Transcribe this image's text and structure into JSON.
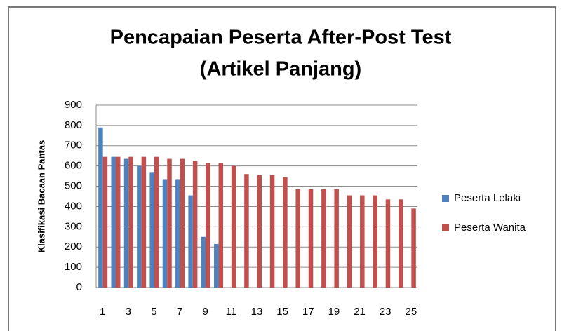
{
  "chart_data": {
    "type": "bar",
    "title": [
      "Pencapaian Peserta After-Post Test",
      "(Artikel Panjang)"
    ],
    "y_label": "Klasifikasi Bacaan Pantas",
    "categories": [
      "1",
      null,
      "3",
      null,
      "5",
      null,
      "7",
      null,
      "9",
      null,
      "11",
      null,
      "13",
      null,
      "15",
      null,
      "17",
      null,
      "19",
      null,
      "21",
      null,
      "23",
      null,
      "25"
    ],
    "series": [
      {
        "name": "Peserta Lelaki",
        "color": "#4f81bd",
        "values": [
          790,
          645,
          635,
          600,
          570,
          535,
          535,
          455,
          250,
          215,
          null,
          null,
          null,
          null,
          null,
          null,
          null,
          null,
          null,
          null,
          null,
          null,
          null,
          null,
          null
        ]
      },
      {
        "name": "Peserta Wanita",
        "color": "#c0504d",
        "values": [
          645,
          645,
          645,
          645,
          645,
          635,
          635,
          625,
          615,
          615,
          600,
          560,
          555,
          555,
          545,
          485,
          485,
          485,
          485,
          455,
          455,
          455,
          435,
          435,
          390
        ]
      }
    ],
    "ylim": [
      0,
      900
    ],
    "yticks": [
      0,
      100,
      200,
      300,
      400,
      500,
      600,
      700,
      800,
      900
    ],
    "grid": true,
    "legend": "right"
  }
}
